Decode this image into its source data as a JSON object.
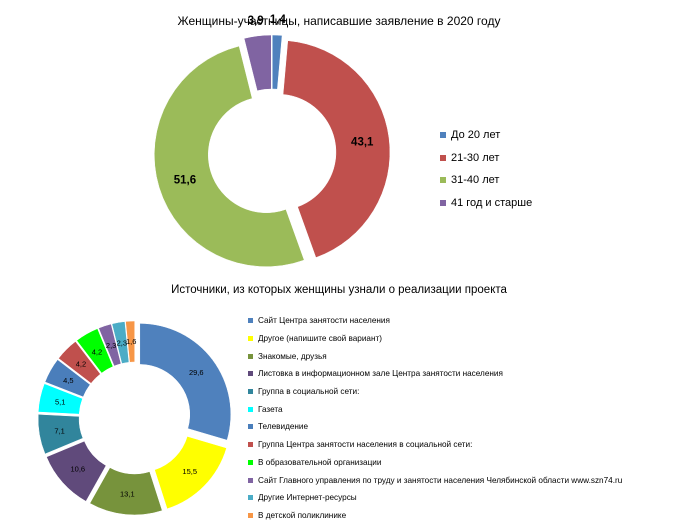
{
  "chart_data": [
    {
      "type": "pie",
      "variant": "exploded-doughnut",
      "title": "Женщины-участницы, написавшие заявление в 2020 году",
      "categories": [
        "До 20 лет",
        "21-30 лет",
        "31-40 лет",
        "41 год и старше"
      ],
      "values": [
        1.4,
        43.1,
        51.6,
        3.9
      ],
      "labels": [
        "1,4",
        "43,1",
        "51,6",
        "3,9"
      ],
      "colors": [
        "#4f81bd",
        "#c0504d",
        "#9bbb59",
        "#8064a2"
      ],
      "legend": "right"
    },
    {
      "type": "pie",
      "variant": "exploded-doughnut",
      "title": "Источники, из которых женщины узнали о реализации проекта",
      "categories": [
        "Сайт Центра занятости населения",
        "Другое (напишите свой вариант)",
        "Знакомые, друзья",
        "Листовка в информационном зале Центра занятости населения",
        "Группа в социальной сети:",
        "Газета",
        "Телевидение",
        "Группа Центра занятости населения в социальной сети:",
        "В образовательной организации",
        "Сайт Главного управления по труду и занятости населения Челябинской области www.szn74.ru",
        "Другие Интернет-ресурсы",
        "В детской поликлинике"
      ],
      "values": [
        29.6,
        15.5,
        13.1,
        10.6,
        7.1,
        5.1,
        4.5,
        4.2,
        4.2,
        2.3,
        2.3,
        1.6
      ],
      "labels": [
        "29,6",
        "15,5",
        "13,1",
        "10,6",
        "7,1",
        "5,1",
        "4,5",
        "4,2",
        "4,2",
        "2,3",
        "2,3",
        "1,6"
      ],
      "colors": [
        "#4f81bd",
        "#ffff00",
        "#77933c",
        "#604a7b",
        "#31859c",
        "#00ffff",
        "#4a7ebb",
        "#c0504d",
        "#00ff00",
        "#8064a2",
        "#4bacc6",
        "#f79646"
      ],
      "legend": "right"
    }
  ]
}
